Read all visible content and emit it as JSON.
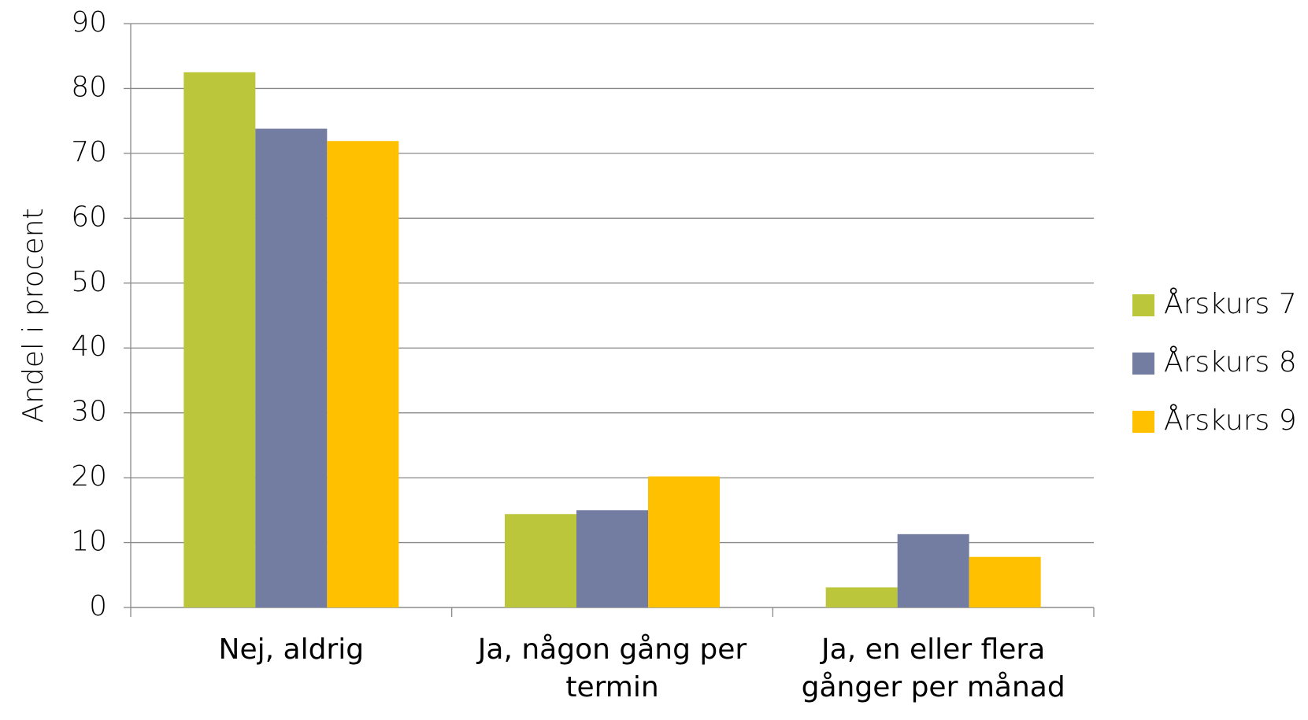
{
  "chart_data": {
    "type": "bar",
    "y_label": "Andel i procent",
    "categories": [
      "Nej, aldrig",
      "Ja, någon gång per termin",
      "Ja, en eller flera gånger per månad"
    ],
    "series": [
      {
        "name": "Årskurs 7",
        "color": "#bbc63a",
        "values": [
          82.5,
          14.4,
          3.1
        ]
      },
      {
        "name": "Årskurs 8",
        "color": "#737ca1",
        "values": [
          73.8,
          15.0,
          11.3
        ]
      },
      {
        "name": "Årskurs 9",
        "color": "#ffc000",
        "values": [
          71.9,
          20.2,
          7.8
        ]
      }
    ],
    "ylim": [
      0,
      90
    ],
    "yticks": [
      0,
      10,
      20,
      30,
      40,
      50,
      60,
      70,
      80,
      90
    ],
    "grid": true,
    "legend": "right"
  }
}
